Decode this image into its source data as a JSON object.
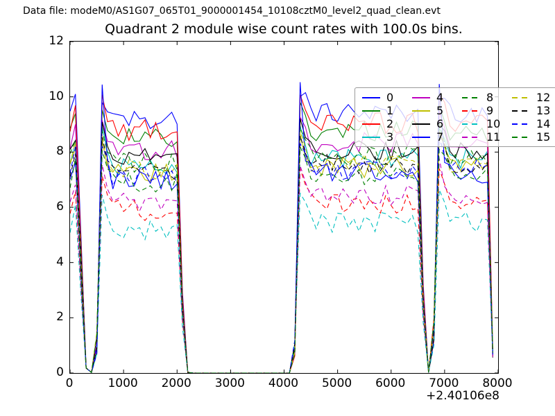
{
  "window": {
    "background": "#ffffff"
  },
  "header": {
    "text": "Data file: modeM0/AS1G07_065T01_9000001454_10108cztM0_level2_quad_clean.evt"
  },
  "chart_data": {
    "type": "line",
    "title": "Quadrant 2 module wise count rates with 100.0s bins.",
    "xlabel": "",
    "ylabel": "",
    "xlim": [
      0,
      8000
    ],
    "ylim": [
      0,
      12
    ],
    "xticks": [
      0,
      1000,
      2000,
      3000,
      4000,
      5000,
      6000,
      7000,
      8000
    ],
    "yticks": [
      0,
      2,
      4,
      6,
      8,
      10,
      12
    ],
    "x_offset_label": "+2.40106e8",
    "bin_width_seconds": 100.0,
    "grid": false,
    "legend_position": "upper-right",
    "x_start": 0,
    "x_step": 100,
    "x_end": 7900,
    "on_intervals_x": [
      [
        0,
        150
      ],
      [
        550,
        2050
      ],
      [
        4280,
        6560
      ],
      [
        6820,
        7840
      ]
    ],
    "zero_gap_intervals_x": [
      [
        350,
        450
      ],
      [
        2150,
        4180
      ],
      [
        6640,
        6740
      ]
    ],
    "plateau_noise_amplitude": 0.38,
    "second_half_level_boost": 0.25,
    "series": [
      {
        "label": "0",
        "color": "#0000ff",
        "linestyle": "solid",
        "plateau_rate": 9.2,
        "segment_start_peak": 9.85
      },
      {
        "label": "1",
        "color": "#008000",
        "linestyle": "solid",
        "plateau_rate": 8.5,
        "segment_start_peak": 9.6
      },
      {
        "label": "2",
        "color": "#ff0000",
        "linestyle": "solid",
        "plateau_rate": 8.8,
        "segment_start_peak": 10.0
      },
      {
        "label": "3",
        "color": "#00bfbf",
        "linestyle": "solid",
        "plateau_rate": 7.5,
        "segment_start_peak": 8.8
      },
      {
        "label": "4",
        "color": "#bf00bf",
        "linestyle": "solid",
        "plateau_rate": 8.1,
        "segment_start_peak": 9.3
      },
      {
        "label": "5",
        "color": "#bfbf00",
        "linestyle": "solid",
        "plateau_rate": 7.2,
        "segment_start_peak": 8.5
      },
      {
        "label": "6",
        "color": "#000000",
        "linestyle": "solid",
        "plateau_rate": 7.8,
        "segment_start_peak": 9.0
      },
      {
        "label": "7",
        "color": "#0000ff",
        "linestyle": "solid",
        "plateau_rate": 7.0,
        "segment_start_peak": 10.3
      },
      {
        "label": "8",
        "color": "#008000",
        "linestyle": "dashed",
        "plateau_rate": 7.6,
        "segment_start_peak": 8.8
      },
      {
        "label": "9",
        "color": "#ff0000",
        "linestyle": "dashed",
        "plateau_rate": 5.9,
        "segment_start_peak": 7.2
      },
      {
        "label": "10",
        "color": "#00bfbf",
        "linestyle": "dashed",
        "plateau_rate": 5.2,
        "segment_start_peak": 6.5
      },
      {
        "label": "11",
        "color": "#bf00bf",
        "linestyle": "dashed",
        "plateau_rate": 6.2,
        "segment_start_peak": 7.5
      },
      {
        "label": "12",
        "color": "#bfbf00",
        "linestyle": "dashed",
        "plateau_rate": 7.4,
        "segment_start_peak": 8.6
      },
      {
        "label": "13",
        "color": "#000000",
        "linestyle": "dashed",
        "plateau_rate": 7.3,
        "segment_start_peak": 8.5
      },
      {
        "label": "14",
        "color": "#0000ff",
        "linestyle": "dashed",
        "plateau_rate": 7.1,
        "segment_start_peak": 8.3
      },
      {
        "label": "15",
        "color": "#008000",
        "linestyle": "dashed",
        "plateau_rate": 6.9,
        "segment_start_peak": 8.1
      }
    ]
  }
}
